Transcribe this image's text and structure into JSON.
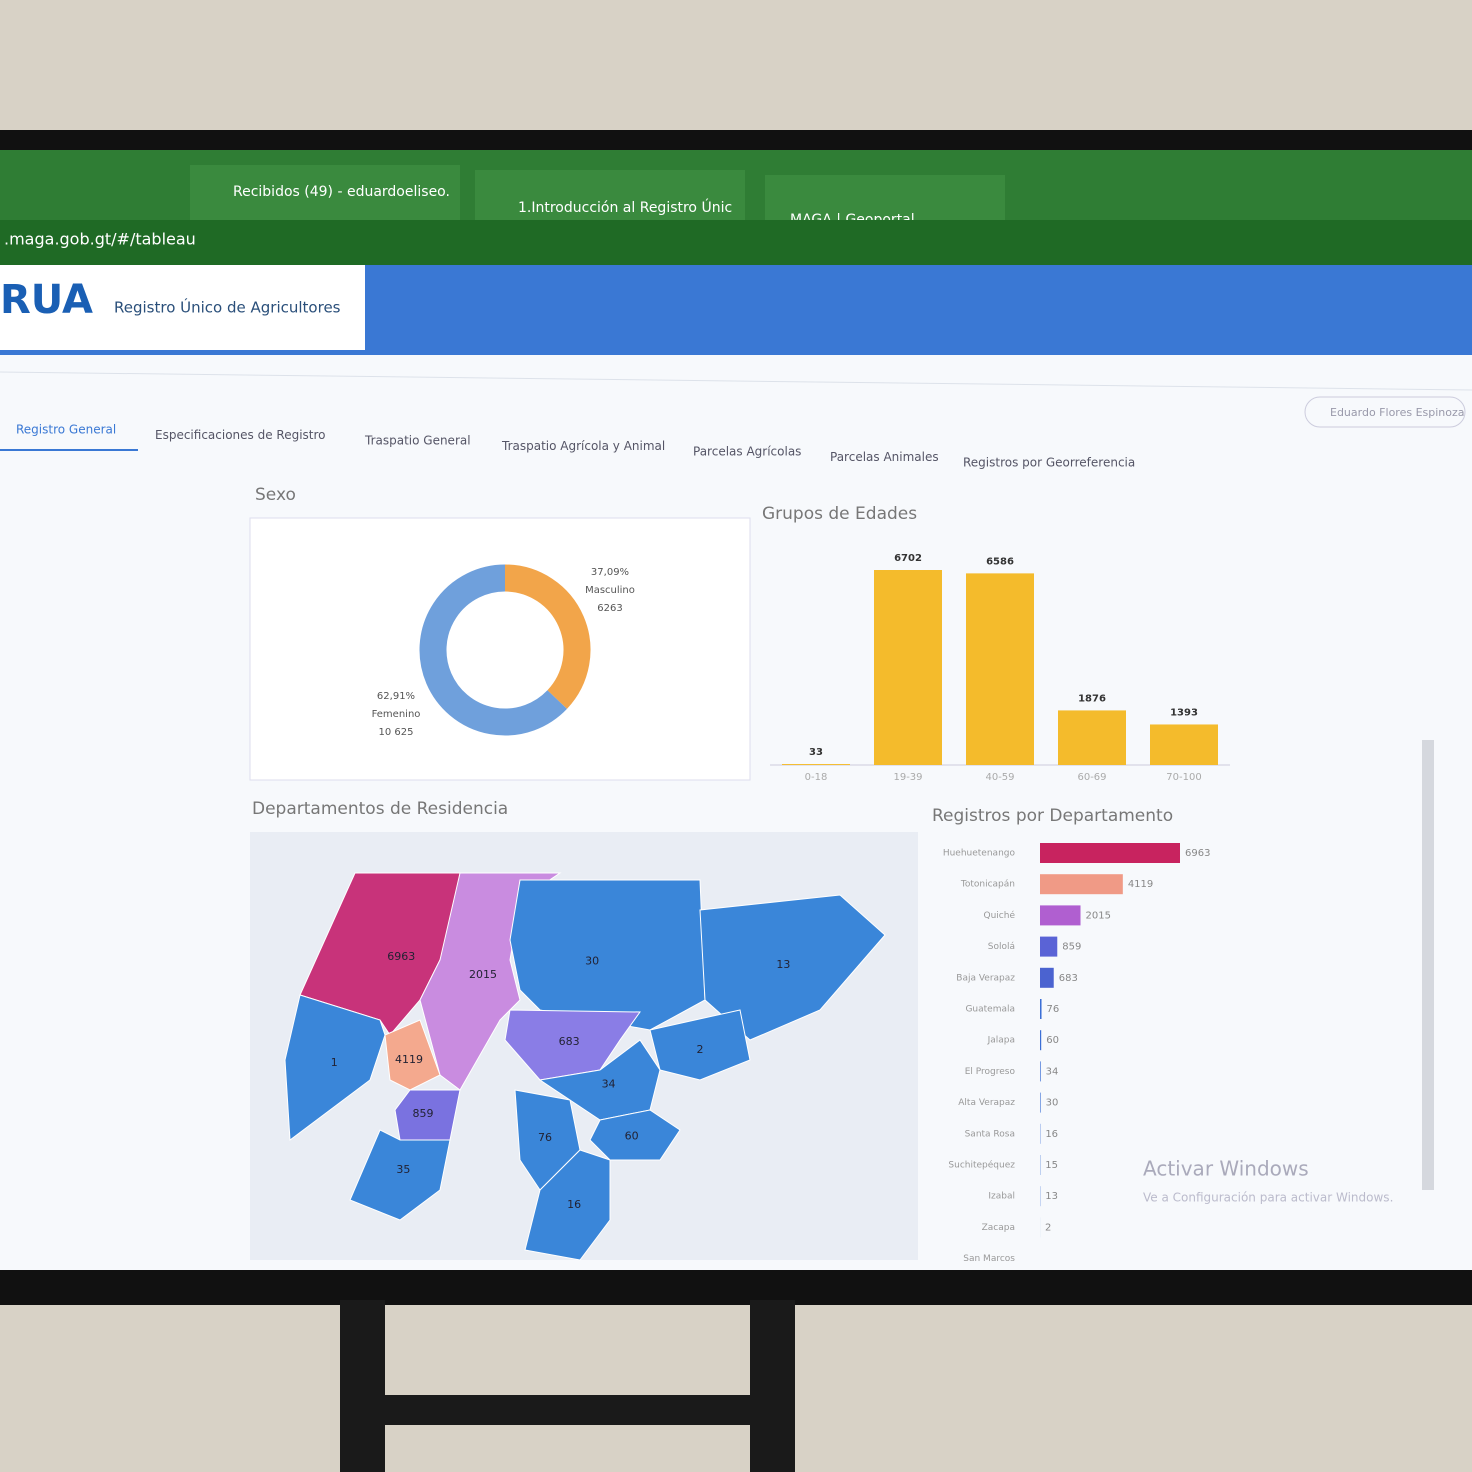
{
  "browser": {
    "tabs": [
      "Recibidos (49) - eduardoeliseo.",
      "1.Introducción al Registro Únic",
      "MAGA | Geoportal"
    ],
    "url": ".maga.gob.gt/#/tableau"
  },
  "header": {
    "logo": "RUA",
    "title": "Registro Único de Agricultores",
    "user": "Eduardo Flores Espinoza"
  },
  "nav": [
    "Registro General",
    "Especificaciones de Registro",
    "Traspatio General",
    "Traspatio Agrícola y Animal",
    "Parcelas Agrícolas",
    "Parcelas Animales",
    "Registros por Georreferencia"
  ],
  "chart_data": [
    {
      "type": "pie",
      "title": "Sexo",
      "categories": [
        "Masculino",
        "Femenino"
      ],
      "values": [
        37.09,
        62.91
      ],
      "value_labels": [
        "37,09%",
        "62,91%"
      ],
      "counts": [
        6263,
        10625
      ],
      "count_labels": [
        "6263",
        "10 625"
      ],
      "colors": [
        "#f2a54a",
        "#6fa0dc"
      ]
    },
    {
      "type": "bar",
      "title": "Grupos de Edades",
      "categories": [
        "0-18",
        "19-39",
        "40-59",
        "60-69",
        "70-100"
      ],
      "values": [
        33,
        6702,
        6586,
        1876,
        1393
      ],
      "color": "#f4bb2c"
    },
    {
      "type": "map",
      "title": "Departamentos de Residencia",
      "values": [
        6963,
        2015,
        30,
        13,
        4119,
        683,
        2,
        1,
        34,
        859,
        76,
        60,
        35,
        16
      ],
      "colors": [
        "#c8337a",
        "#c98ce0",
        "#3a86d9",
        "#3a86d9",
        "#f4a98e",
        "#8a7de6",
        "#3a86d9",
        "#3a86d9",
        "#3a86d9",
        "#7a72e0",
        "#3a86d9",
        "#3a86d9",
        "#3a86d9",
        "#3a86d9"
      ]
    },
    {
      "type": "hbar",
      "title": "Registros por Departamento",
      "categories": [
        "Huehuetenango",
        "Totonicapán",
        "Quiché",
        "Sololá",
        "Baja Verapaz",
        "Guatemala",
        "Jalapa",
        "El Progreso",
        "Alta Verapaz",
        "Santa Rosa",
        "Suchitepéquez",
        "Izabal",
        "Zacapa",
        "San Marcos"
      ],
      "values": [
        6963,
        4119,
        2015,
        859,
        683,
        76,
        60,
        34,
        30,
        16,
        15,
        13,
        2,
        null
      ],
      "colors": [
        "#c8235f",
        "#f09a86",
        "#b05fd0",
        "#5a63d6",
        "#4b63d0",
        "#3b6fd6",
        "#3b6fd6",
        "#3b6fd6",
        "#3b6fd6",
        "#3b6fd6",
        "#3b6fd6",
        "#3b6fd6",
        "#3b6fd6",
        "#3b6fd6"
      ]
    }
  ],
  "watermark": {
    "title": "Activar Windows",
    "text": "Ve a Configuración para activar Windows."
  }
}
